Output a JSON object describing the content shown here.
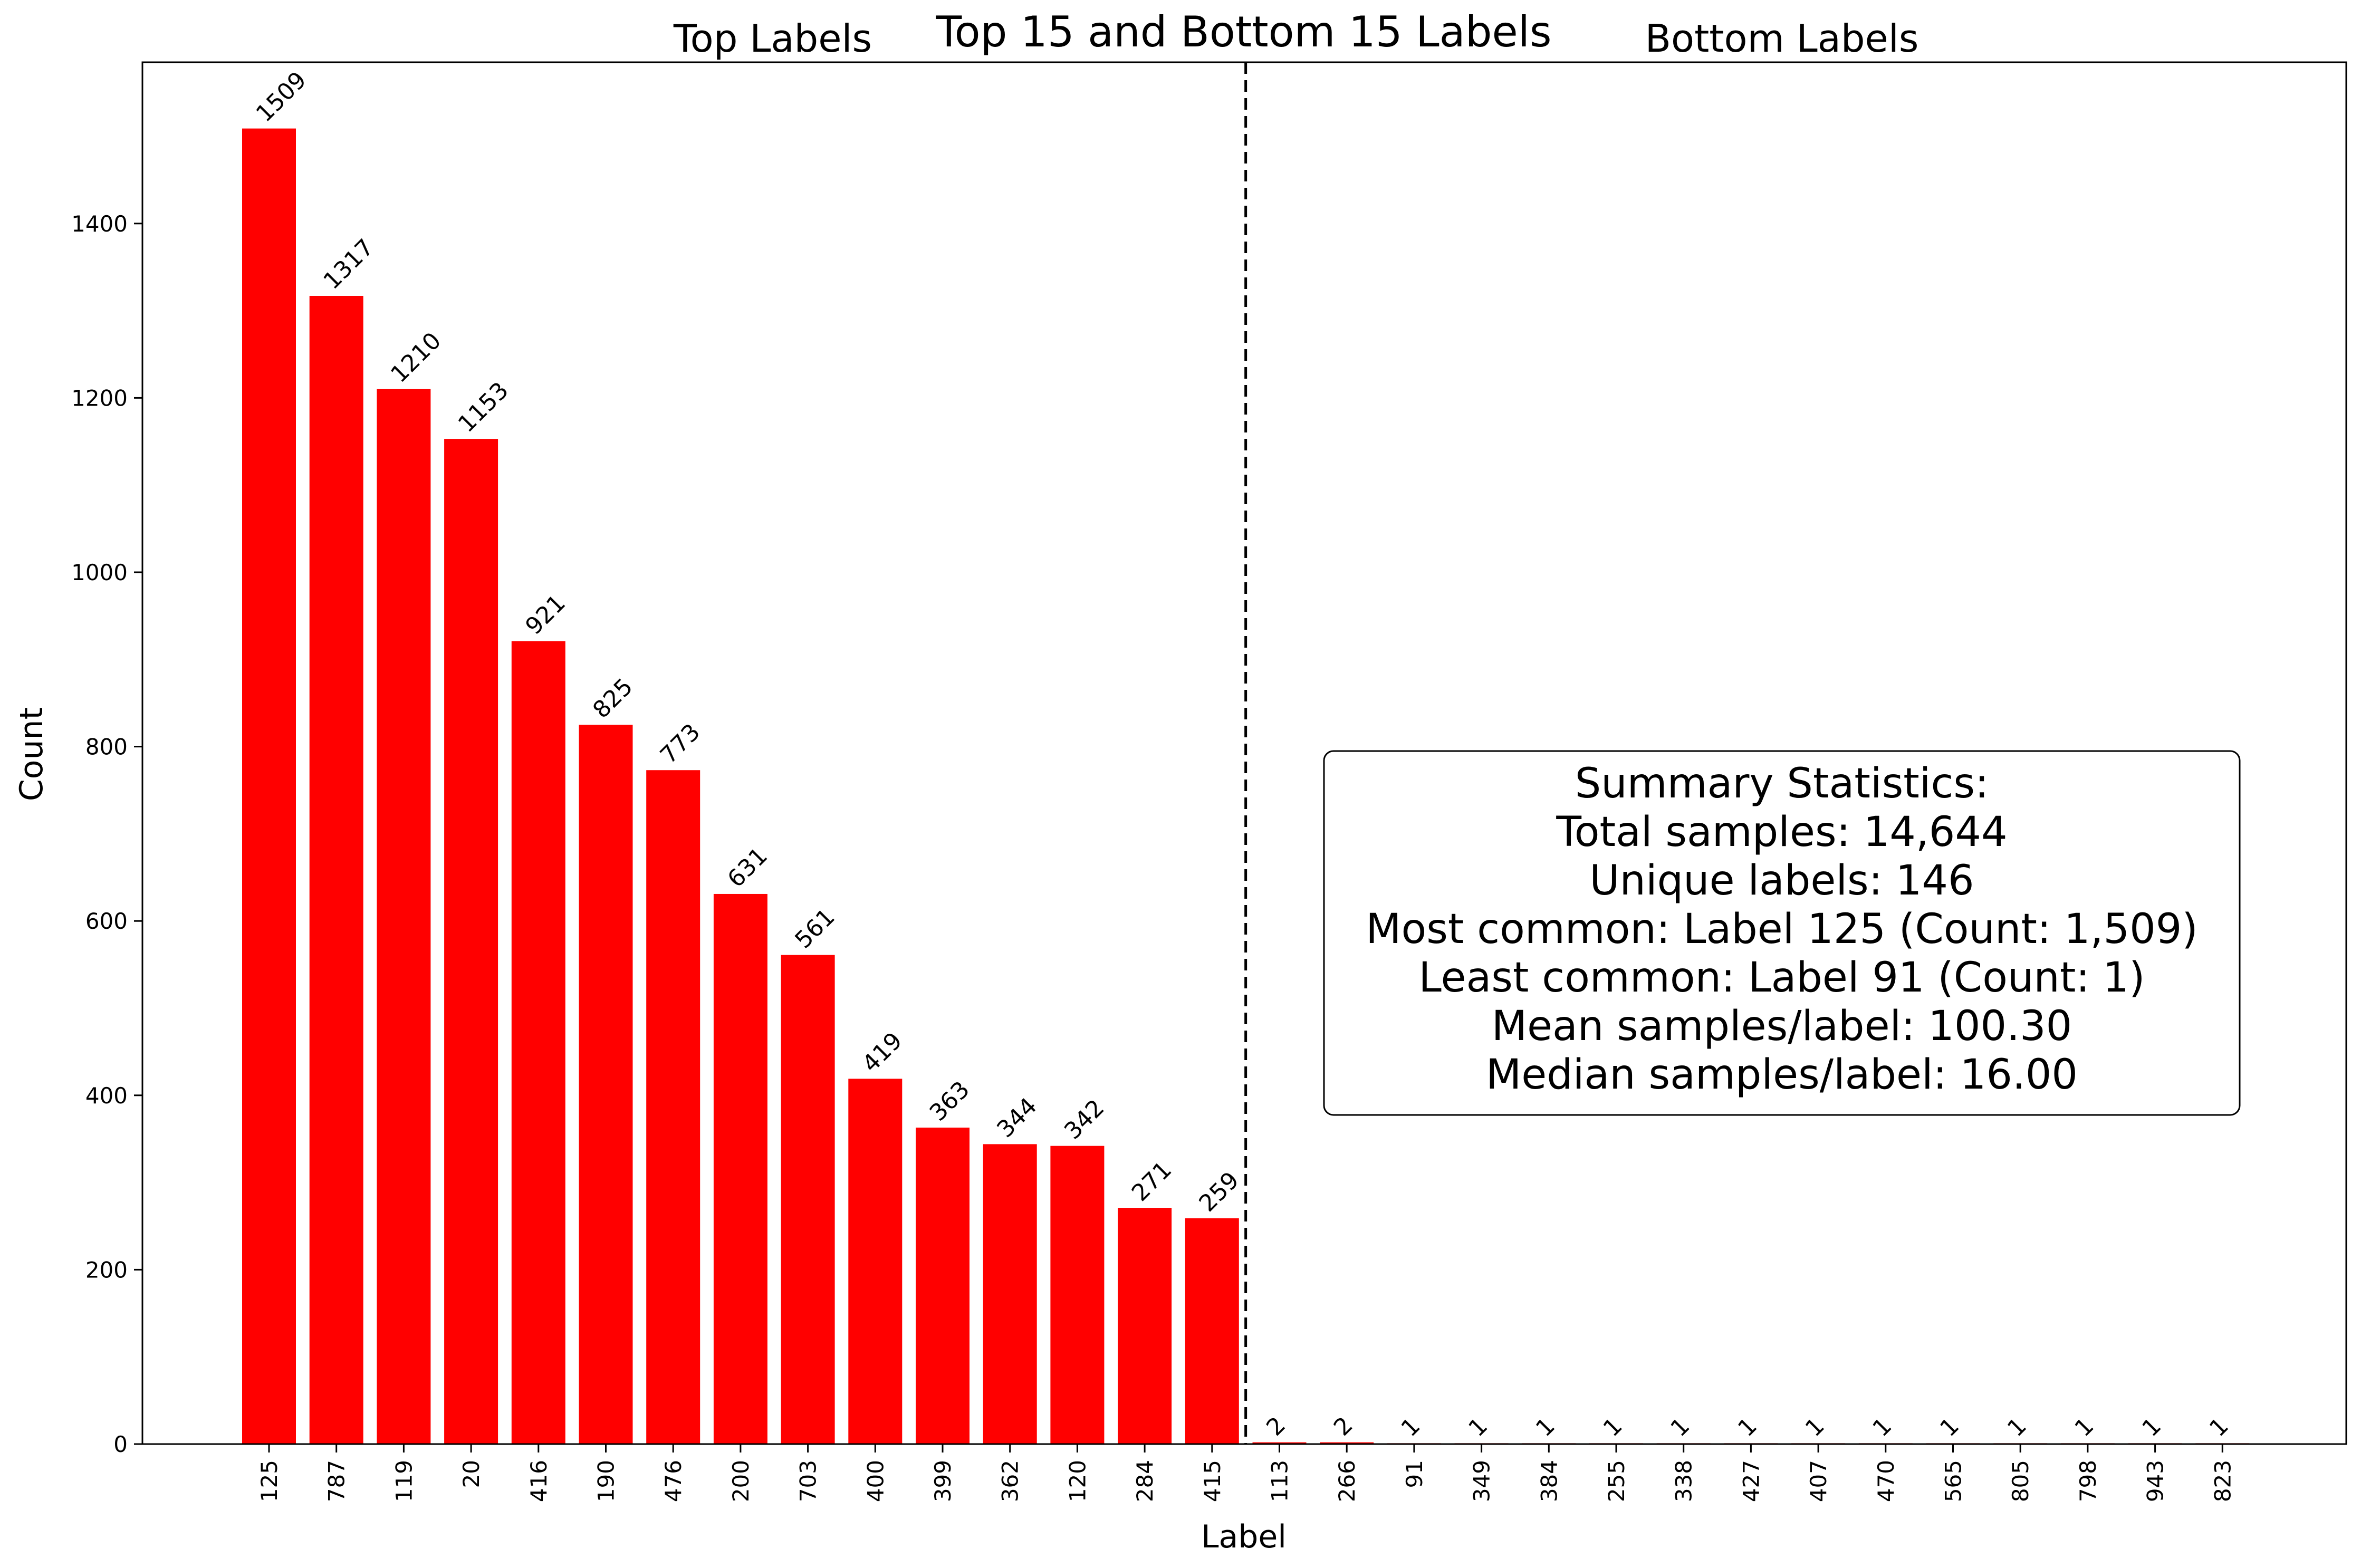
{
  "chart_data": {
    "type": "bar",
    "title": "Top 15 and Bottom 15 Labels",
    "xlabel": "Label",
    "ylabel": "Count",
    "ylim": [
      0,
      1585
    ],
    "yticks": [
      0,
      200,
      400,
      600,
      800,
      1000,
      1200,
      1400
    ],
    "bar_color": "#ff0000",
    "categories": [
      "125",
      "787",
      "119",
      "20",
      "416",
      "190",
      "476",
      "200",
      "703",
      "400",
      "399",
      "362",
      "120",
      "284",
      "415",
      "113",
      "266",
      "91",
      "349",
      "384",
      "255",
      "338",
      "427",
      "407",
      "470",
      "565",
      "805",
      "798",
      "943",
      "823"
    ],
    "values": [
      1509,
      1317,
      1210,
      1153,
      921,
      825,
      773,
      631,
      561,
      419,
      363,
      344,
      342,
      271,
      259,
      2,
      2,
      1,
      1,
      1,
      1,
      1,
      1,
      1,
      1,
      1,
      1,
      1,
      1,
      1
    ],
    "section_labels": {
      "left": "Top Labels",
      "right": "Bottom Labels"
    },
    "summary": {
      "heading": "Summary Statistics:",
      "lines": [
        "Total samples: 14,644",
        "Unique labels: 146",
        "Most common: Label 125 (Count: 1,509)",
        "Least common: Label 91 (Count: 1)",
        "Mean samples/label: 100.30",
        "Median samples/label: 16.00"
      ]
    }
  }
}
